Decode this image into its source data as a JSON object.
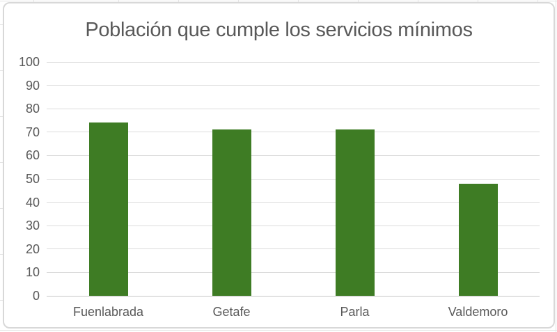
{
  "chart_data": {
    "type": "bar",
    "title": "Población que cumple los servicios mínimos",
    "categories": [
      "Fuenlabrada",
      "Getafe",
      "Parla",
      "Valdemoro"
    ],
    "values": [
      74,
      71,
      71,
      48
    ],
    "series": [
      {
        "name": "Población que cumple los servicios mínimos",
        "values": [
          74,
          71,
          71,
          48
        ]
      }
    ],
    "xlabel": "",
    "ylabel": "",
    "ylim": [
      0,
      100
    ],
    "ytick_step": 10,
    "ytick_labels": [
      "0",
      "10",
      "20",
      "30",
      "40",
      "50",
      "60",
      "70",
      "80",
      "90",
      "100"
    ],
    "grid": true,
    "legend": false,
    "data_labels": false,
    "colors": {
      "bar": "#3E7C24",
      "text": "#595959",
      "gridline": "#DCDCDC",
      "axis_line": "#C6C6C6",
      "chart_border": "#D8D8D8",
      "background": "#FFFFFF"
    }
  }
}
